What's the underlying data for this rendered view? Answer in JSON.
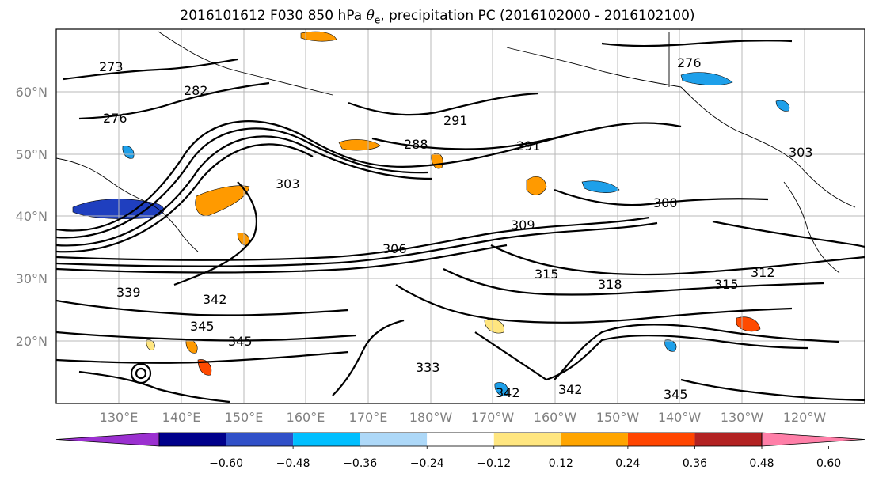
{
  "title": {
    "prefix": "2016101612 F030 850 hPa ",
    "symbol": "θ",
    "subscript": "e",
    "suffix": ", precipitation PC (2016102000 - 2016102100)"
  },
  "map": {
    "lat_labels": [
      "60°N",
      "50°N",
      "40°N",
      "30°N",
      "20°N"
    ],
    "lon_labels": [
      "130°E",
      "140°E",
      "150°E",
      "160°E",
      "170°E",
      "180°W",
      "170°W",
      "160°W",
      "150°W",
      "140°W",
      "130°W",
      "120°W"
    ],
    "contour_labels": [
      "273",
      "282",
      "276",
      "288",
      "291",
      "291",
      "300",
      "303",
      "306",
      "309",
      "312",
      "315",
      "315",
      "318",
      "339",
      "342",
      "345",
      "345",
      "342",
      "342",
      "345",
      "333",
      "303",
      "276"
    ],
    "shading_colors": {
      "neg_strong": "#1f3fbf",
      "neg_mid": "#1ea0ea",
      "neg_weak": "#a8dcf8",
      "pos_weak": "#ffe680",
      "pos_mid": "#ff9a00",
      "pos_strong": "#ff4a00"
    }
  },
  "colorbar": {
    "colors": [
      "#9b30d0",
      "#00008b",
      "#3050c8",
      "#00bfff",
      "#add8f8",
      "#ffffff",
      "#ffe680",
      "#ffa500",
      "#ff4500",
      "#b22222",
      "#ff7fa8"
    ],
    "labels": [
      "−0.60",
      "−0.48",
      "−0.36",
      "−0.24",
      "−0.12",
      "0.12",
      "0.24",
      "0.36",
      "0.48",
      "0.60"
    ]
  }
}
